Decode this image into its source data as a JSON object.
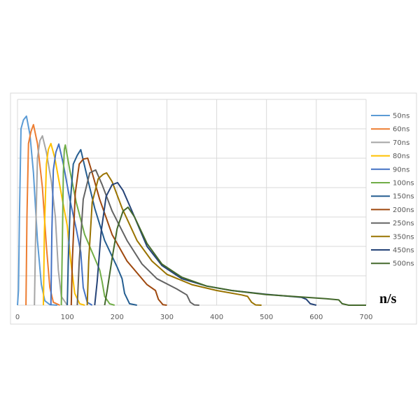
{
  "chart_data": {
    "type": "line",
    "title": "",
    "xlabel": "n/s",
    "ylabel": "",
    "xlim": [
      0,
      700
    ],
    "ylim": [
      0,
      7
    ],
    "x_ticks": [
      "0",
      "100",
      "200",
      "300",
      "400",
      "500",
      "600",
      "700"
    ],
    "grid": true,
    "legend_position": "right",
    "series": [
      {
        "name": "50ns",
        "color": "#5B9BD5",
        "points": [
          [
            0,
            0
          ],
          [
            2,
            0.5
          ],
          [
            4,
            3
          ],
          [
            7,
            6
          ],
          [
            12,
            6.3
          ],
          [
            18,
            6.43
          ],
          [
            25,
            5.8
          ],
          [
            32,
            4.5
          ],
          [
            40,
            2.2
          ],
          [
            48,
            0.7
          ],
          [
            55,
            0.15
          ],
          [
            65,
            0.02
          ],
          [
            80,
            0
          ]
        ]
      },
      {
        "name": "60ns",
        "color": "#ED7D31",
        "points": [
          [
            17,
            0
          ],
          [
            19,
            3
          ],
          [
            22,
            5.5
          ],
          [
            27,
            5.9
          ],
          [
            32,
            6.14
          ],
          [
            40,
            5.5
          ],
          [
            50,
            4
          ],
          [
            58,
            2
          ],
          [
            65,
            0.6
          ],
          [
            72,
            0.1
          ],
          [
            85,
            0
          ]
        ]
      },
      {
        "name": "70ns",
        "color": "#A5A5A5",
        "points": [
          [
            34,
            0
          ],
          [
            36,
            2
          ],
          [
            40,
            5
          ],
          [
            45,
            5.6
          ],
          [
            50,
            5.76
          ],
          [
            58,
            5.2
          ],
          [
            68,
            4.2
          ],
          [
            76,
            3
          ],
          [
            82,
            1.2
          ],
          [
            88,
            0.3
          ],
          [
            100,
            0
          ]
        ]
      },
      {
        "name": "80ns",
        "color": "#FFC000",
        "points": [
          [
            52,
            0
          ],
          [
            54,
            2.5
          ],
          [
            58,
            4.8
          ],
          [
            62,
            5.3
          ],
          [
            67,
            5.5
          ],
          [
            75,
            5
          ],
          [
            90,
            3.6
          ],
          [
            100,
            2.7
          ],
          [
            107,
            1.5
          ],
          [
            115,
            0.4
          ],
          [
            125,
            0.05
          ],
          [
            135,
            0
          ]
        ]
      },
      {
        "name": "90ns",
        "color": "#4472C4",
        "points": [
          [
            67,
            0
          ],
          [
            69,
            2.5
          ],
          [
            72,
            4.6
          ],
          [
            77,
            5.2
          ],
          [
            83,
            5.48
          ],
          [
            92,
            4.8
          ],
          [
            105,
            3.6
          ],
          [
            118,
            2.6
          ],
          [
            127,
            1.8
          ],
          [
            132,
            0.6
          ],
          [
            140,
            0.1
          ],
          [
            150,
            0
          ]
        ]
      },
      {
        "name": "100ns",
        "color": "#70AD47",
        "points": [
          [
            88,
            0
          ],
          [
            90,
            2
          ],
          [
            92,
            4.5
          ],
          [
            94,
            5.3
          ],
          [
            96,
            5.45
          ],
          [
            105,
            4.6
          ],
          [
            118,
            3.5
          ],
          [
            135,
            2.4
          ],
          [
            165,
            1.2
          ],
          [
            170,
            0.8
          ],
          [
            175,
            0.3
          ],
          [
            185,
            0.05
          ],
          [
            195,
            0
          ]
        ]
      },
      {
        "name": "150ns",
        "color": "#255E91",
        "points": [
          [
            100,
            0
          ],
          [
            102,
            1.5
          ],
          [
            106,
            3.5
          ],
          [
            112,
            4.8
          ],
          [
            120,
            5.1
          ],
          [
            127,
            5.29
          ],
          [
            138,
            4.5
          ],
          [
            155,
            3.3
          ],
          [
            175,
            2.2
          ],
          [
            200,
            1.3
          ],
          [
            210,
            0.9
          ],
          [
            215,
            0.4
          ],
          [
            225,
            0.05
          ],
          [
            240,
            0
          ]
        ]
      },
      {
        "name": "200ns",
        "color": "#9E480E",
        "points": [
          [
            108,
            0
          ],
          [
            110,
            1.5
          ],
          [
            116,
            3.8
          ],
          [
            124,
            4.8
          ],
          [
            132,
            4.97
          ],
          [
            141,
            5.0
          ],
          [
            150,
            4.5
          ],
          [
            165,
            3.6
          ],
          [
            190,
            2.4
          ],
          [
            220,
            1.5
          ],
          [
            260,
            0.7
          ],
          [
            277,
            0.5
          ],
          [
            283,
            0.2
          ],
          [
            292,
            0.02
          ],
          [
            300,
            0
          ]
        ]
      },
      {
        "name": "250ns",
        "color": "#636363",
        "points": [
          [
            120,
            0
          ],
          [
            124,
            1.5
          ],
          [
            132,
            3.6
          ],
          [
            145,
            4.5
          ],
          [
            157,
            4.6
          ],
          [
            170,
            4.1
          ],
          [
            190,
            3.2
          ],
          [
            220,
            2.2
          ],
          [
            250,
            1.4
          ],
          [
            280,
            0.9
          ],
          [
            320,
            0.55
          ],
          [
            340,
            0.35
          ],
          [
            347,
            0.1
          ],
          [
            355,
            0.01
          ],
          [
            365,
            0
          ]
        ]
      },
      {
        "name": "350ns",
        "color": "#997300",
        "points": [
          [
            140,
            0
          ],
          [
            143,
            1.5
          ],
          [
            150,
            3.5
          ],
          [
            162,
            4.3
          ],
          [
            172,
            4.45
          ],
          [
            179,
            4.5
          ],
          [
            190,
            4.2
          ],
          [
            210,
            3.3
          ],
          [
            240,
            2.2
          ],
          [
            270,
            1.5
          ],
          [
            300,
            1.05
          ],
          [
            350,
            0.7
          ],
          [
            400,
            0.5
          ],
          [
            450,
            0.35
          ],
          [
            462,
            0.3
          ],
          [
            470,
            0.1
          ],
          [
            478,
            0.01
          ],
          [
            490,
            0
          ]
        ]
      },
      {
        "name": "450ns",
        "color": "#264478",
        "points": [
          [
            155,
            0
          ],
          [
            160,
            0.8
          ],
          [
            168,
            2.5
          ],
          [
            178,
            3.7
          ],
          [
            190,
            4.1
          ],
          [
            201,
            4.17
          ],
          [
            212,
            3.9
          ],
          [
            230,
            3.2
          ],
          [
            260,
            2.0
          ],
          [
            290,
            1.35
          ],
          [
            330,
            0.9
          ],
          [
            380,
            0.65
          ],
          [
            430,
            0.5
          ],
          [
            500,
            0.37
          ],
          [
            570,
            0.27
          ],
          [
            580,
            0.2
          ],
          [
            588,
            0.05
          ],
          [
            600,
            0
          ]
        ]
      },
      {
        "name": "500ns",
        "color": "#43682B",
        "points": [
          [
            175,
            0
          ],
          [
            180,
            0.5
          ],
          [
            190,
            1.6
          ],
          [
            200,
            2.6
          ],
          [
            212,
            3.2
          ],
          [
            222,
            3.33
          ],
          [
            235,
            3.0
          ],
          [
            260,
            2.1
          ],
          [
            290,
            1.4
          ],
          [
            330,
            0.95
          ],
          [
            380,
            0.65
          ],
          [
            430,
            0.5
          ],
          [
            500,
            0.36
          ],
          [
            570,
            0.28
          ],
          [
            620,
            0.22
          ],
          [
            645,
            0.18
          ],
          [
            652,
            0.05
          ],
          [
            665,
            0
          ],
          [
            700,
            0
          ]
        ]
      }
    ]
  }
}
